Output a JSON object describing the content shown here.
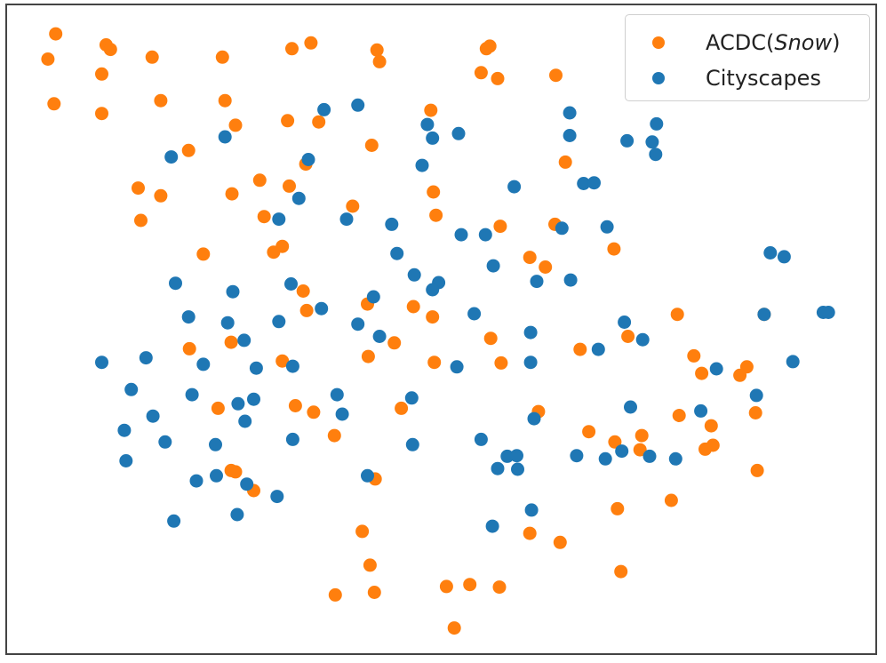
{
  "chart_data": {
    "type": "scatter",
    "title": "",
    "xlabel": "",
    "ylabel": "",
    "xlim": [
      0,
      100
    ],
    "ylim": [
      0,
      100
    ],
    "grid": false,
    "legend_position": "top-right",
    "series": [
      {
        "name": "ACDC(Snow)",
        "name_prefix": "ACDC(",
        "name_italic": "Snow",
        "name_suffix": ")",
        "color": "#ff7f0e",
        "points": [
          [
            5.6,
            95.6
          ],
          [
            4.7,
            91.7
          ],
          [
            5.4,
            84.8
          ],
          [
            11.4,
            93.9
          ],
          [
            11.9,
            93.2
          ],
          [
            16.7,
            92.0
          ],
          [
            24.8,
            92.0
          ],
          [
            32.8,
            93.3
          ],
          [
            35.0,
            94.2
          ],
          [
            42.6,
            93.1
          ],
          [
            42.9,
            91.3
          ],
          [
            55.2,
            93.3
          ],
          [
            55.6,
            93.7
          ],
          [
            54.6,
            89.6
          ],
          [
            56.5,
            88.7
          ],
          [
            63.2,
            89.2
          ],
          [
            10.9,
            89.4
          ],
          [
            10.9,
            83.3
          ],
          [
            17.7,
            85.3
          ],
          [
            25.1,
            85.3
          ],
          [
            26.3,
            81.5
          ],
          [
            32.3,
            82.2
          ],
          [
            35.9,
            82.0
          ],
          [
            20.9,
            77.6
          ],
          [
            15.1,
            71.8
          ],
          [
            17.7,
            70.6
          ],
          [
            15.4,
            66.8
          ],
          [
            25.9,
            70.9
          ],
          [
            29.1,
            73.0
          ],
          [
            32.5,
            72.1
          ],
          [
            34.4,
            75.5
          ],
          [
            42.0,
            78.4
          ],
          [
            48.8,
            83.8
          ],
          [
            49.1,
            71.2
          ],
          [
            39.8,
            69.0
          ],
          [
            29.6,
            67.4
          ],
          [
            49.4,
            67.6
          ],
          [
            22.6,
            61.6
          ],
          [
            30.7,
            61.9
          ],
          [
            31.7,
            62.8
          ],
          [
            56.8,
            65.9
          ],
          [
            63.1,
            66.2
          ],
          [
            60.2,
            61.1
          ],
          [
            62.0,
            59.6
          ],
          [
            64.3,
            75.8
          ],
          [
            69.9,
            62.4
          ],
          [
            34.1,
            55.9
          ],
          [
            34.5,
            52.9
          ],
          [
            41.5,
            53.9
          ],
          [
            46.8,
            53.5
          ],
          [
            49.0,
            51.9
          ],
          [
            55.7,
            48.6
          ],
          [
            56.9,
            44.8
          ],
          [
            49.2,
            44.9
          ],
          [
            44.6,
            47.9
          ],
          [
            41.6,
            45.8
          ],
          [
            31.7,
            45.1
          ],
          [
            21.0,
            47.0
          ],
          [
            25.8,
            48.0
          ],
          [
            77.2,
            52.3
          ],
          [
            71.5,
            48.9
          ],
          [
            66.0,
            46.9
          ],
          [
            79.1,
            45.9
          ],
          [
            80.0,
            43.2
          ],
          [
            85.2,
            44.2
          ],
          [
            84.4,
            42.9
          ],
          [
            87.2,
            52.3
          ],
          [
            24.3,
            37.8
          ],
          [
            33.2,
            38.2
          ],
          [
            35.3,
            37.2
          ],
          [
            37.7,
            33.6
          ],
          [
            45.4,
            37.8
          ],
          [
            61.2,
            37.3
          ],
          [
            67.0,
            34.2
          ],
          [
            73.1,
            33.6
          ],
          [
            70.0,
            32.6
          ],
          [
            72.9,
            31.4
          ],
          [
            77.4,
            36.7
          ],
          [
            81.1,
            35.1
          ],
          [
            81.3,
            32.1
          ],
          [
            80.4,
            31.5
          ],
          [
            86.2,
            37.1
          ],
          [
            86.4,
            28.2
          ],
          [
            26.3,
            28.0
          ],
          [
            25.8,
            28.2
          ],
          [
            28.4,
            25.1
          ],
          [
            42.4,
            26.9
          ],
          [
            70.3,
            22.3
          ],
          [
            76.5,
            23.6
          ],
          [
            60.2,
            18.5
          ],
          [
            63.7,
            17.1
          ],
          [
            40.9,
            18.8
          ],
          [
            41.8,
            13.6
          ],
          [
            42.3,
            9.4
          ],
          [
            37.8,
            9.0
          ],
          [
            50.6,
            10.3
          ],
          [
            53.3,
            10.6
          ],
          [
            56.7,
            10.2
          ],
          [
            70.7,
            12.6
          ],
          [
            51.5,
            3.9
          ]
        ]
      },
      {
        "name": "Cityscapes",
        "color": "#1f77b4",
        "points": [
          [
            40.4,
            84.6
          ],
          [
            36.5,
            83.9
          ],
          [
            25.1,
            79.7
          ],
          [
            18.9,
            76.6
          ],
          [
            34.7,
            76.2
          ],
          [
            48.4,
            81.6
          ],
          [
            49.0,
            79.5
          ],
          [
            52.0,
            80.2
          ],
          [
            47.8,
            75.3
          ],
          [
            64.8,
            83.4
          ],
          [
            64.8,
            79.9
          ],
          [
            74.8,
            81.7
          ],
          [
            71.4,
            79.1
          ],
          [
            74.3,
            78.9
          ],
          [
            74.7,
            77.0
          ],
          [
            58.4,
            72.0
          ],
          [
            66.4,
            72.5
          ],
          [
            67.6,
            72.6
          ],
          [
            33.6,
            70.2
          ],
          [
            31.3,
            67.0
          ],
          [
            39.1,
            67.0
          ],
          [
            44.3,
            66.2
          ],
          [
            44.9,
            61.7
          ],
          [
            52.3,
            64.6
          ],
          [
            55.1,
            64.6
          ],
          [
            63.9,
            65.6
          ],
          [
            69.1,
            65.8
          ],
          [
            56.0,
            59.8
          ],
          [
            46.9,
            58.4
          ],
          [
            49.7,
            57.2
          ],
          [
            49.0,
            56.1
          ],
          [
            61.0,
            57.4
          ],
          [
            64.9,
            57.6
          ],
          [
            87.9,
            61.8
          ],
          [
            89.5,
            61.2
          ],
          [
            19.4,
            57.1
          ],
          [
            26.0,
            55.8
          ],
          [
            32.7,
            57.0
          ],
          [
            36.2,
            53.2
          ],
          [
            42.2,
            55.0
          ],
          [
            20.9,
            51.9
          ],
          [
            25.4,
            51.0
          ],
          [
            31.3,
            51.2
          ],
          [
            40.4,
            50.8
          ],
          [
            53.8,
            52.4
          ],
          [
            60.3,
            49.5
          ],
          [
            71.1,
            51.1
          ],
          [
            94.0,
            52.6
          ],
          [
            94.6,
            52.6
          ],
          [
            87.2,
            52.3
          ],
          [
            10.9,
            44.9
          ],
          [
            16.0,
            45.6
          ],
          [
            22.6,
            44.6
          ],
          [
            27.3,
            48.3
          ],
          [
            28.7,
            44.0
          ],
          [
            32.9,
            44.3
          ],
          [
            42.9,
            48.9
          ],
          [
            51.8,
            44.2
          ],
          [
            60.3,
            44.9
          ],
          [
            68.1,
            46.9
          ],
          [
            73.2,
            48.4
          ],
          [
            90.5,
            45.0
          ],
          [
            14.3,
            40.7
          ],
          [
            21.3,
            39.9
          ],
          [
            16.8,
            36.6
          ],
          [
            26.6,
            38.5
          ],
          [
            28.4,
            39.2
          ],
          [
            38.0,
            39.9
          ],
          [
            46.6,
            39.4
          ],
          [
            27.4,
            35.8
          ],
          [
            38.6,
            36.9
          ],
          [
            60.7,
            36.2
          ],
          [
            71.8,
            38.0
          ],
          [
            79.9,
            37.4
          ],
          [
            81.7,
            43.9
          ],
          [
            86.3,
            39.8
          ],
          [
            13.5,
            34.4
          ],
          [
            18.2,
            32.6
          ],
          [
            24.0,
            32.2
          ],
          [
            32.9,
            33.0
          ],
          [
            46.7,
            32.2
          ],
          [
            54.6,
            33.0
          ],
          [
            57.6,
            30.4
          ],
          [
            58.7,
            30.5
          ],
          [
            56.5,
            28.5
          ],
          [
            58.8,
            28.4
          ],
          [
            65.6,
            30.5
          ],
          [
            68.9,
            30.0
          ],
          [
            70.8,
            31.2
          ],
          [
            74.0,
            30.4
          ],
          [
            77.0,
            30.0
          ],
          [
            13.7,
            29.7
          ],
          [
            21.8,
            26.6
          ],
          [
            24.1,
            27.4
          ],
          [
            27.6,
            26.1
          ],
          [
            31.1,
            24.2
          ],
          [
            41.5,
            27.4
          ],
          [
            26.5,
            21.4
          ],
          [
            19.2,
            20.4
          ],
          [
            55.9,
            19.6
          ],
          [
            60.4,
            22.1
          ]
        ]
      }
    ]
  }
}
